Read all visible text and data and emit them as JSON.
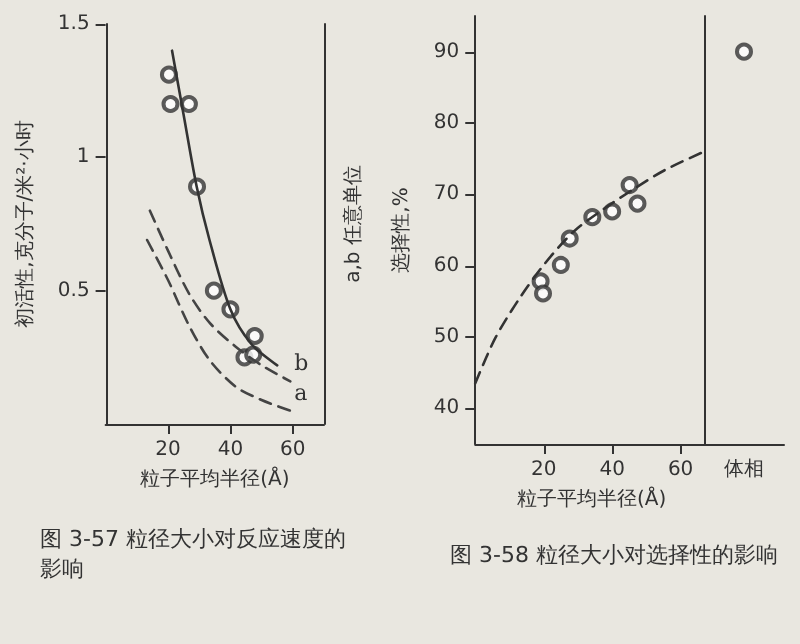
{
  "chart_data": [
    {
      "type": "line",
      "title": "图 3-57  粒径大小对反应速度的影响",
      "xlabel": "粒子平均半径(Å)",
      "ylabel": "初活性,克分子/米²·小时",
      "y2label": "a,b 任意单位",
      "xlim": [
        0,
        70
      ],
      "xticks": [
        20,
        40,
        60
      ],
      "ylim": [
        0,
        1.5
      ],
      "yticks": [
        0.5,
        1.0,
        1.5
      ],
      "grid": false,
      "series": [
        {
          "type": "scatter",
          "marker": "circle",
          "color": "#333333",
          "x": [
            20.3,
            20.8,
            26.7,
            29.3,
            34.7,
            40,
            44.5,
            47.3,
            47.8
          ],
          "values": [
            1.31,
            1.2,
            1.2,
            0.89,
            0.5,
            0.43,
            0.25,
            0.26,
            0.33
          ]
        },
        {
          "line_style": "solid",
          "marker": "none",
          "color": "#333333",
          "x": [
            21.3,
            25,
            29.2,
            33.3,
            40,
            46.7,
            55
          ],
          "values": [
            1.4,
            1.16,
            0.89,
            0.69,
            0.43,
            0.3,
            0.22
          ]
        },
        {
          "name": "b",
          "line_style": "dashed",
          "marker": "none",
          "color": "#444444",
          "x": [
            14.2,
            20,
            26.7,
            33.3,
            41.7,
            50,
            59.2
          ],
          "values": [
            0.8,
            0.65,
            0.49,
            0.38,
            0.29,
            0.22,
            0.16
          ]
        },
        {
          "name": "a",
          "line_style": "dashed",
          "marker": "none",
          "color": "#444444",
          "x": [
            13.3,
            20,
            26.7,
            33.3,
            41.7,
            50,
            59.2
          ],
          "values": [
            0.69,
            0.54,
            0.37,
            0.24,
            0.14,
            0.09,
            0.05
          ]
        }
      ]
    },
    {
      "type": "scatter",
      "title": "图 3-58  粒径大小对选择性的影响",
      "xlabel": "粒子平均半径(Å)",
      "ylabel": "选择性,%",
      "xlim": [
        0,
        68
      ],
      "xticks": [
        20,
        40,
        60
      ],
      "ylim": [
        35,
        95
      ],
      "yticks": [
        40,
        50,
        60,
        70,
        80,
        90
      ],
      "grid": false,
      "series": [
        {
          "marker": "circle",
          "color": "#333333",
          "x": [
            19.1,
            19.8,
            25,
            27.6,
            34.2,
            40,
            45.1,
            47.4
          ],
          "values": [
            57.8,
            56.1,
            60.1,
            63.8,
            66.8,
            67.6,
            71.3,
            68.7
          ]
        },
        {
          "type": "line",
          "line_style": "dashed",
          "marker": "none",
          "color": "#333333",
          "x": [
            0,
            5.8,
            12.9,
            20,
            28.8,
            37.7,
            46.5,
            55.4,
            67.8
          ],
          "values": [
            43.5,
            49.8,
            55.4,
            60.1,
            64.8,
            68,
            70.8,
            73.4,
            76.2
          ]
        }
      ]
    },
    {
      "type": "scatter",
      "categories": [
        "体相"
      ],
      "ylim": [
        35,
        95
      ],
      "tick_labels": "x",
      "grid": false,
      "series": [
        {
          "marker": "circle",
          "color": "#333333",
          "values": [
            90
          ]
        }
      ]
    }
  ]
}
